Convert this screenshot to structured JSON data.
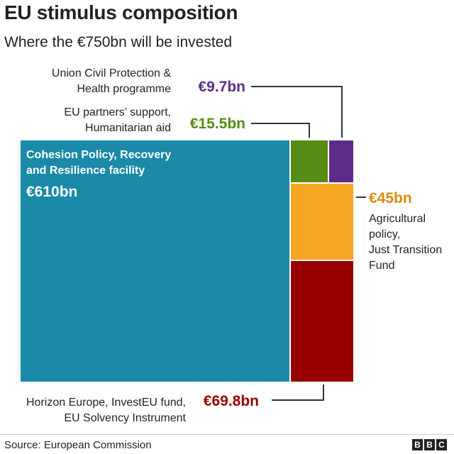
{
  "title": "EU stimulus composition",
  "subtitle": "Where the €750bn will be invested",
  "source": "Source: European Commission",
  "brand": [
    "B",
    "B",
    "C"
  ],
  "chart_data": {
    "type": "treemap",
    "unit": "€bn",
    "total": 750,
    "items": [
      {
        "id": "cohesion",
        "name_lines": [
          "Cohesion Policy, Recovery",
          "and Resilience facility"
        ],
        "value": 610,
        "value_label": "€610bn",
        "color": "#1a8aa8",
        "label_color": "#ffffff"
      },
      {
        "id": "horizon",
        "name_lines": [
          "Horizon Europe, InvestEU fund,",
          "EU Solvency Instrument"
        ],
        "value": 69.8,
        "value_label": "€69.8bn",
        "color": "#990000",
        "label_color": "#990000"
      },
      {
        "id": "agri",
        "name_lines": [
          "Agricultural",
          "policy,",
          "Just Transition",
          "Fund"
        ],
        "value": 45,
        "value_label": "€45bn",
        "color": "#f5a623",
        "label_color": "#d98c0b"
      },
      {
        "id": "partners",
        "name_lines": [
          "EU partners’ support,",
          "Humanitarian aid"
        ],
        "value": 15.5,
        "value_label": "€15.5bn",
        "color": "#588b15",
        "label_color": "#588b15"
      },
      {
        "id": "civil",
        "name_lines": [
          "Union Civil Protection &",
          "Health programme"
        ],
        "value": 9.7,
        "value_label": "€9.7bn",
        "color": "#5b2d89",
        "label_color": "#5b2d89"
      }
    ]
  }
}
